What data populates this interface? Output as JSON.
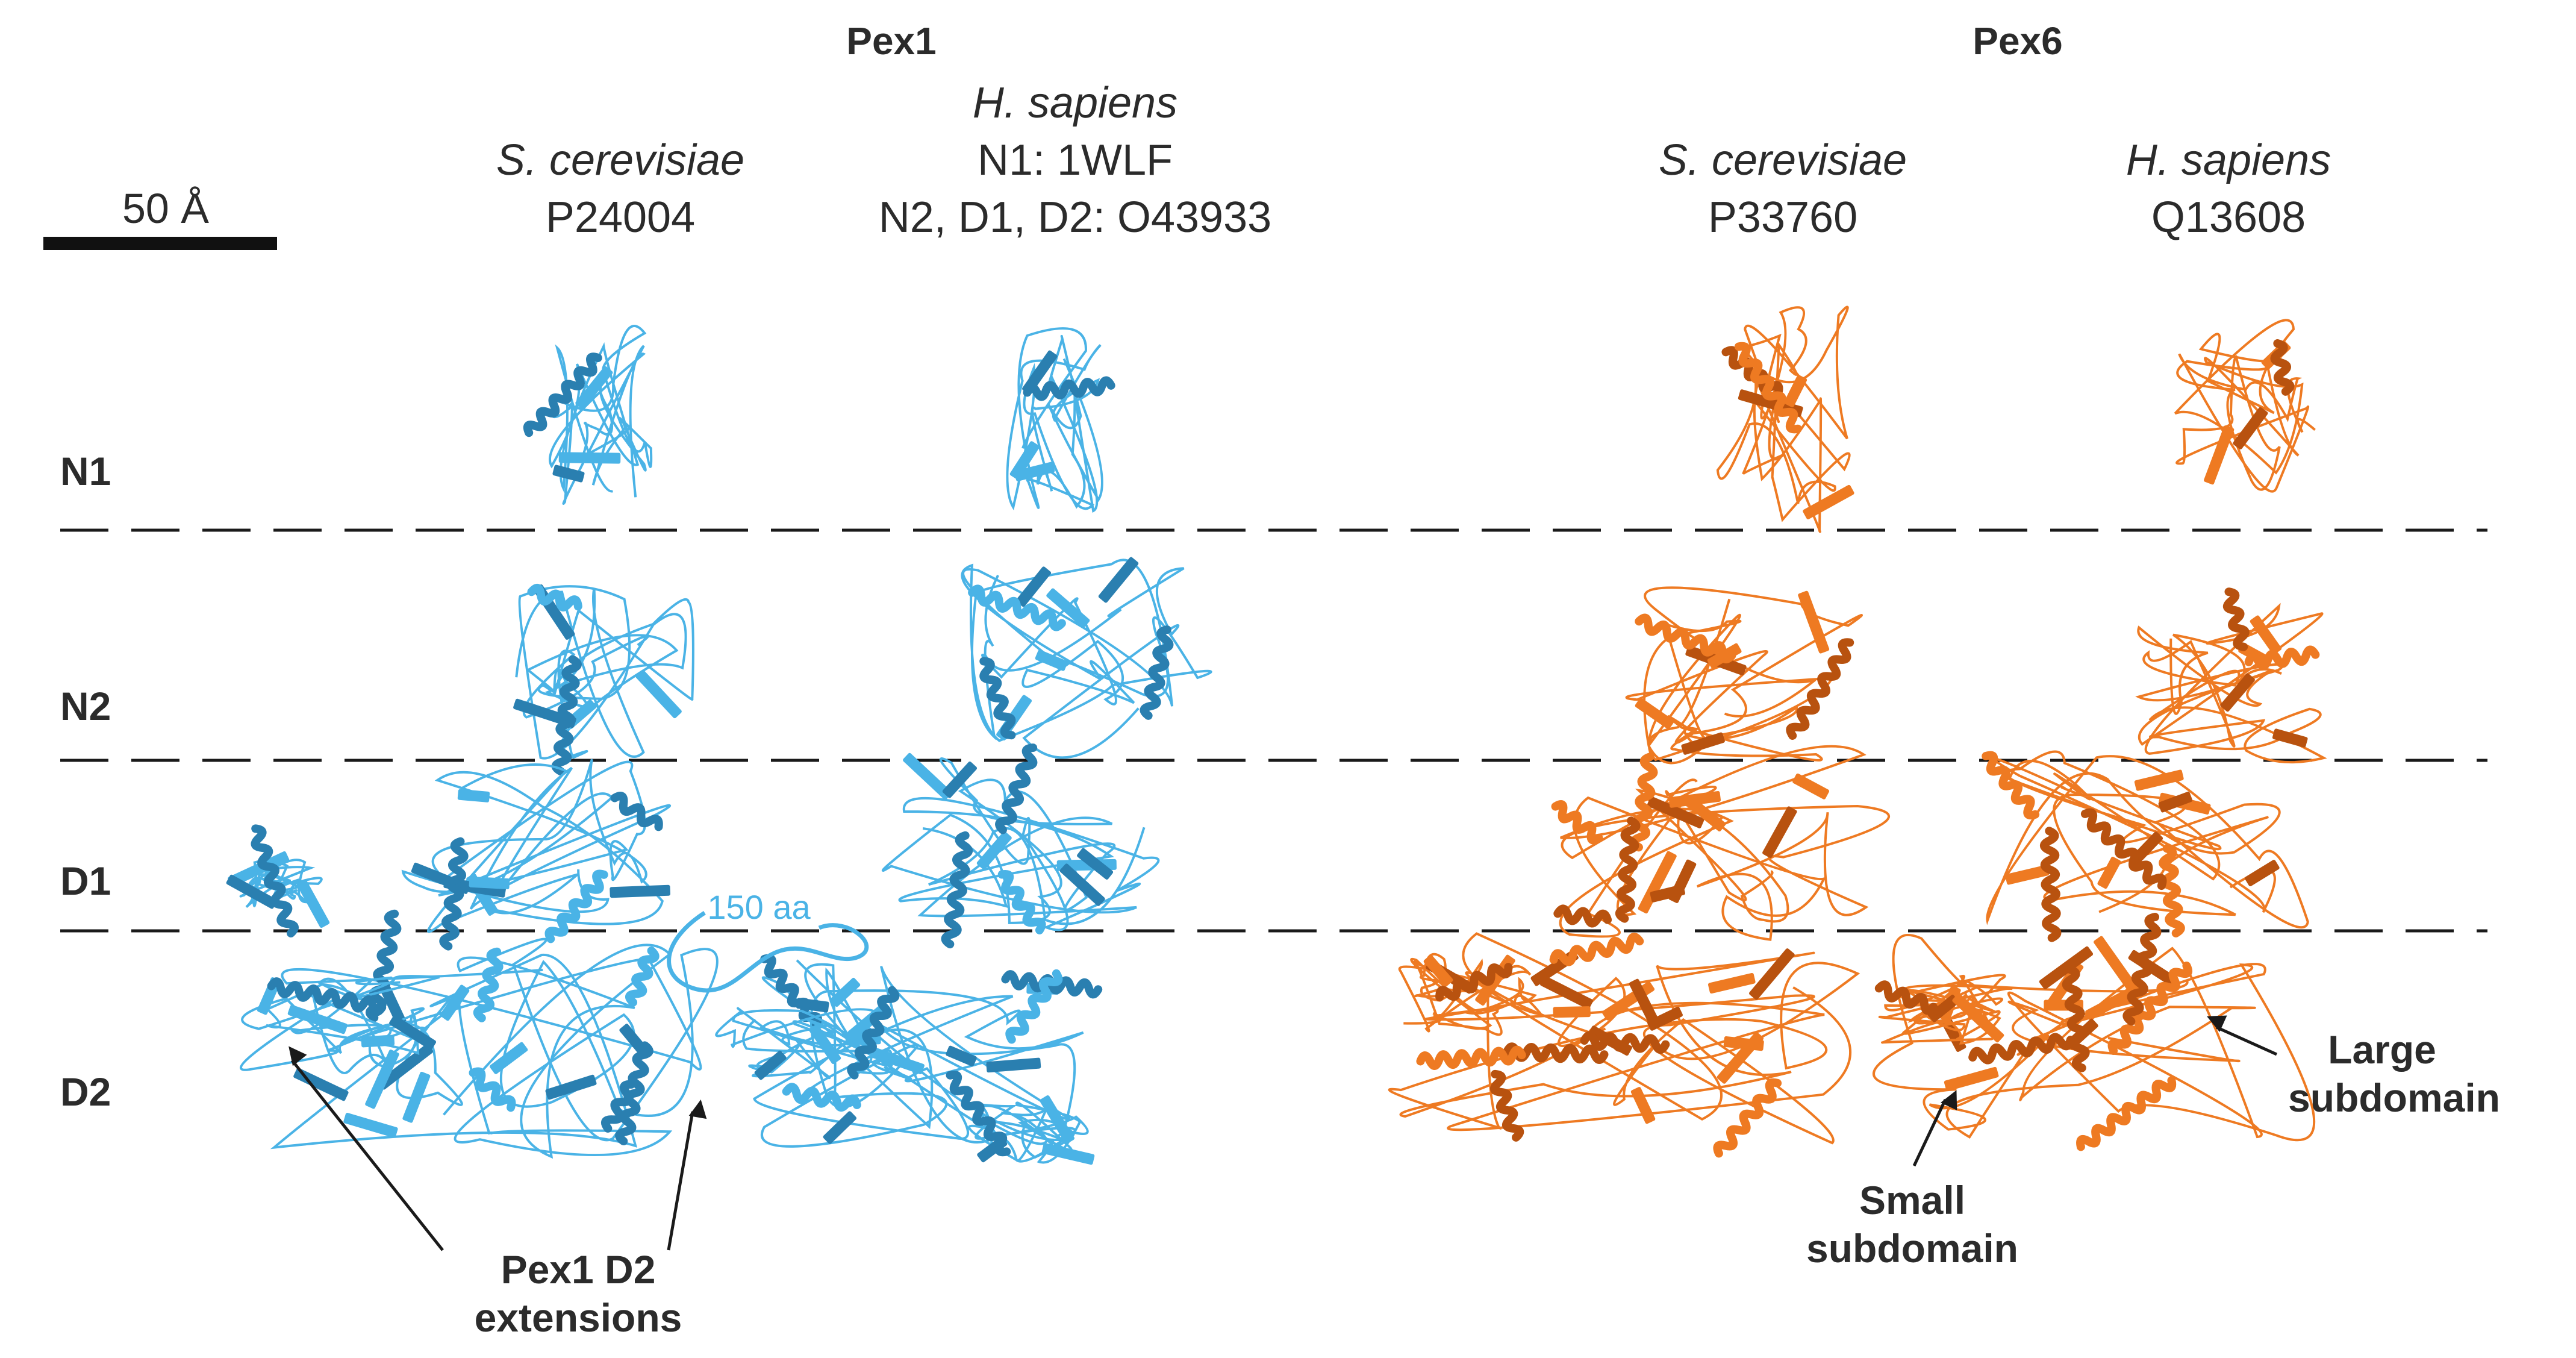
{
  "colors": {
    "pex1": "#4ab3e6",
    "pex1_dark": "#2a7fb0",
    "pex6": "#ee7a22",
    "pex6_dark": "#b8520f",
    "text": "#2b2b2b",
    "dash": "#1a1a1a"
  },
  "scale_bar": {
    "label": "50 Å"
  },
  "groups": [
    {
      "title": "Pex1"
    },
    {
      "title": "Pex6"
    }
  ],
  "columns": [
    {
      "species": "S. cerevisiae",
      "ids": [
        "P24004"
      ]
    },
    {
      "species": "H. sapiens",
      "ids": [
        "N1: 1WLF",
        "N2, D1, D2: O43933"
      ]
    },
    {
      "species": "S. cerevisiae",
      "ids": [
        "P33760"
      ]
    },
    {
      "species": "H. sapiens",
      "ids": [
        "Q13608"
      ]
    }
  ],
  "rows": [
    "N1",
    "N2",
    "D1",
    "D2"
  ],
  "annotations": {
    "linker": "150 aa",
    "pex1_ext_line1": "Pex1 D2",
    "pex1_ext_line2": "extensions",
    "small_line1": "Small",
    "small_line2": "subdomain",
    "large_line1": "Large",
    "large_line2": "subdomain"
  },
  "structures": [
    {
      "name": "pex1-sc-structure",
      "domains": [
        "N1",
        "N2",
        "D1",
        "D2"
      ],
      "color_key": "pex1",
      "icon": "ribbon-cartoon"
    },
    {
      "name": "pex1-hs-structure",
      "domains": [
        "N1",
        "N2",
        "D1",
        "D2"
      ],
      "color_key": "pex1",
      "icon": "ribbon-cartoon"
    },
    {
      "name": "pex6-sc-structure",
      "domains": [
        "N1",
        "N2",
        "D1",
        "D2"
      ],
      "color_key": "pex6",
      "icon": "ribbon-cartoon"
    },
    {
      "name": "pex6-hs-structure",
      "domains": [
        "N1",
        "N2",
        "D1",
        "D2"
      ],
      "color_key": "pex6",
      "icon": "ribbon-cartoon"
    }
  ]
}
